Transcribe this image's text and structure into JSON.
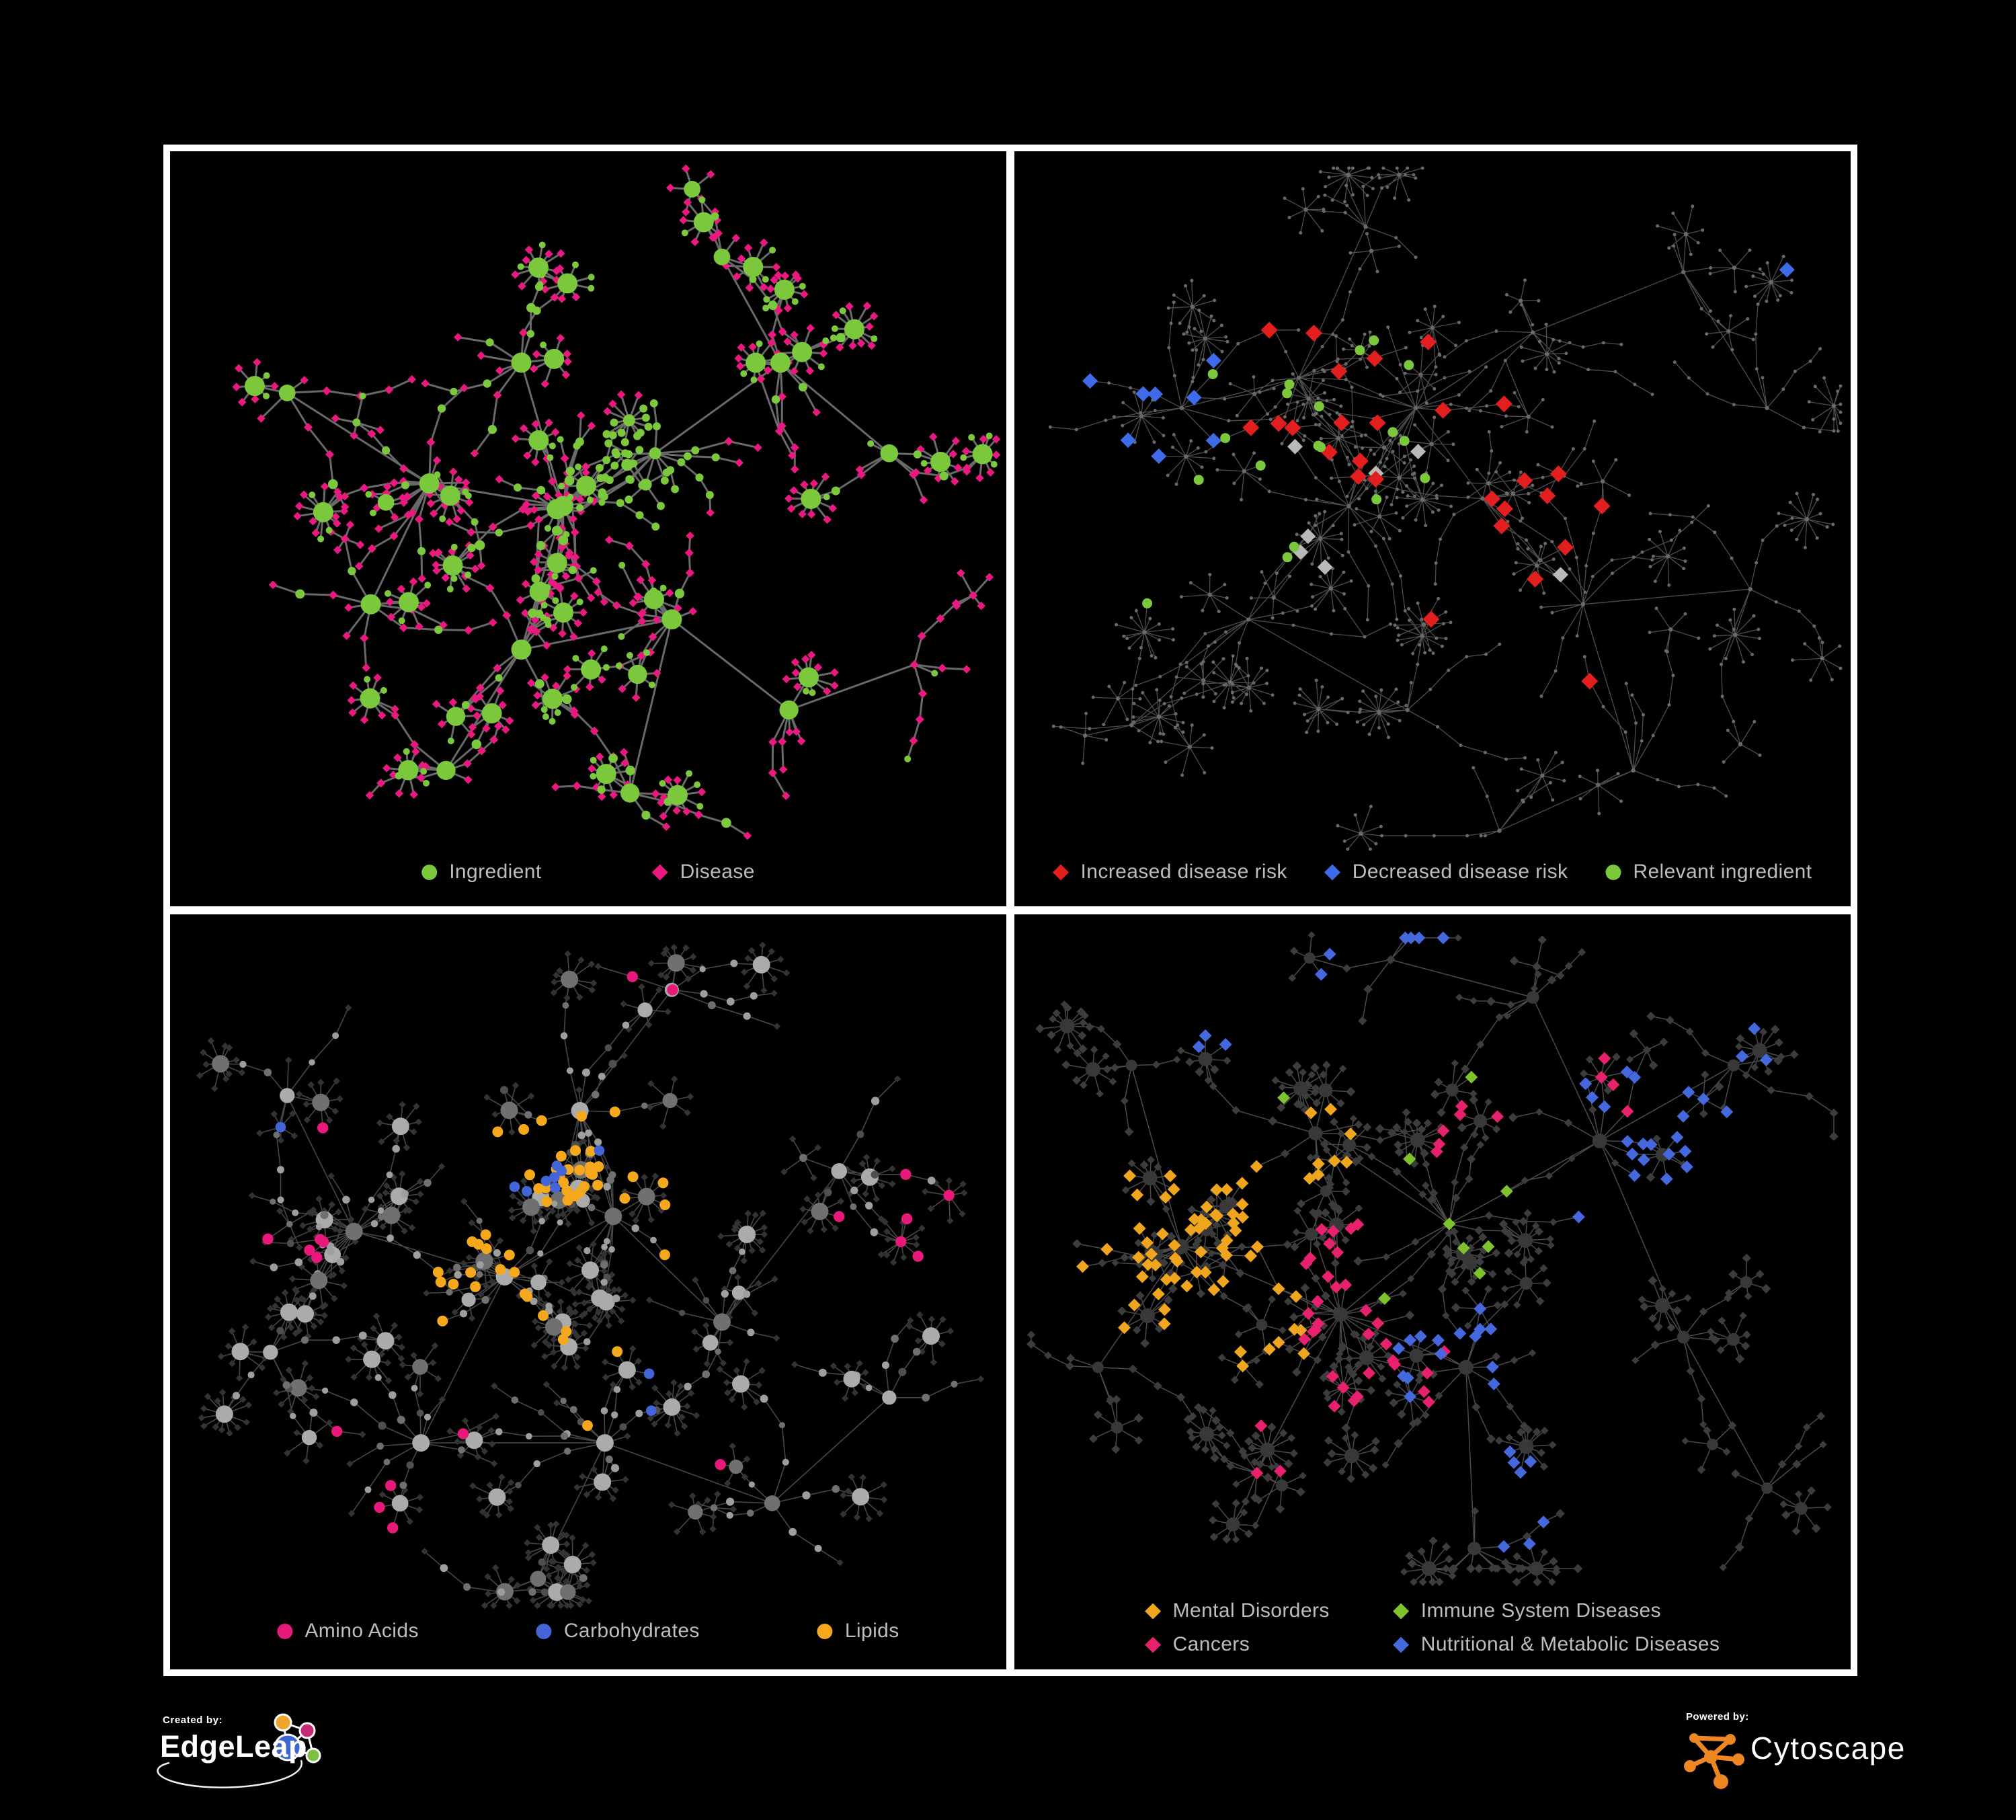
{
  "figure": {
    "background": "#000000",
    "panel_border_color": "#ffffff",
    "legend_text_color": "#BDBDBD"
  },
  "panels": [
    {
      "id": "ingredient-disease",
      "legend": [
        {
          "label": "Ingredient",
          "shape": "circle",
          "color": "#7CC83C"
        },
        {
          "label": "Disease",
          "shape": "diamond",
          "color": "#E9197F"
        }
      ],
      "network": {
        "edge_color": "#6F6F6F",
        "node_total_approx": 640,
        "categories": [
          {
            "name": "Ingredient",
            "shape": "circle",
            "color": "#7CC83C",
            "share": 0.33
          },
          {
            "name": "Disease",
            "shape": "diamond",
            "color": "#E9197F",
            "share": 0.67
          }
        ]
      }
    },
    {
      "id": "disease-risk",
      "legend": [
        {
          "label": "Increased disease risk",
          "shape": "diamond",
          "color": "#E31E1E"
        },
        {
          "label": "Decreased disease risk",
          "shape": "diamond",
          "color": "#3F6BE8"
        },
        {
          "label": "Relevant ingredient",
          "shape": "circle",
          "color": "#7CC83C"
        }
      ],
      "network": {
        "edge_color": "#575757",
        "base_node_color": "#696969",
        "node_total_approx": 660,
        "highlights": [
          {
            "name": "Increased disease risk",
            "shape": "diamond",
            "color": "#E31E1E",
            "count": 27
          },
          {
            "name": "Decreased disease risk",
            "shape": "diamond",
            "color": "#3F6BE8",
            "count": 9
          },
          {
            "name": "Unlabeled disease",
            "shape": "diamond",
            "color": "#B9B9B9",
            "count": 7
          },
          {
            "name": "Relevant ingredient",
            "shape": "circle",
            "color": "#7CC83C",
            "count": 19
          }
        ]
      }
    },
    {
      "id": "nutrient-classes",
      "legend": [
        {
          "label": "Amino Acids",
          "shape": "circle",
          "color": "#E9197C"
        },
        {
          "label": "Carbohydrates",
          "shape": "circle",
          "color": "#4465D8"
        },
        {
          "label": "Lipids",
          "shape": "circle",
          "color": "#F5A81C"
        }
      ],
      "network": {
        "edge_color": "#545454",
        "base_leaf_color": "#333333",
        "base_node_colors": [
          "#9E9E9E",
          "#707070",
          "#4F4F4F",
          "#ABABAB"
        ],
        "node_total_approx": 650,
        "highlights": [
          {
            "name": "Amino Acids",
            "shape": "circle",
            "color": "#E9197C",
            "count": 20
          },
          {
            "name": "Carbohydrates",
            "shape": "circle",
            "color": "#4465D8",
            "count": 11
          },
          {
            "name": "Lipids",
            "shape": "circle",
            "color": "#F5A81C",
            "count": 52
          }
        ]
      }
    },
    {
      "id": "disease-classes",
      "legend": [
        {
          "label": "Mental Disorders",
          "shape": "diamond",
          "color": "#F0A51F"
        },
        {
          "label": "Immune System Diseases",
          "shape": "diamond",
          "color": "#7CC32C"
        },
        {
          "label": "Cancers",
          "shape": "diamond",
          "color": "#E8216E"
        },
        {
          "label": "Nutritional & Metabolic Diseases",
          "shape": "diamond",
          "color": "#4568DE"
        }
      ],
      "network": {
        "edge_color": "#585858",
        "base_node_color": "#3C3C3C",
        "node_total_approx": 700,
        "highlights": [
          {
            "name": "Mental Disorders",
            "shape": "diamond",
            "color": "#F0A51F",
            "count": 70
          },
          {
            "name": "Cancers",
            "shape": "diamond",
            "color": "#E8216E",
            "count": 46
          },
          {
            "name": "Immune System Diseases",
            "shape": "diamond",
            "color": "#7CC32C",
            "count": 9
          },
          {
            "name": "Nutritional & Metabolic Diseases",
            "shape": "diamond",
            "color": "#4568DE",
            "count": 56
          }
        ]
      }
    }
  ],
  "footer": {
    "created_by_label": "Created by:",
    "created_by_name": "EdgeLeap",
    "powered_by_label": "Powered by:",
    "powered_by_name": "Cytoscape",
    "cytoscape_color": "#EE8622",
    "edgeleap_logo_colors": {
      "orange": "#EFA52F",
      "magenta": "#C52A72",
      "blue": "#3E66CE",
      "green": "#7CC142",
      "lines": "#FFFFFF"
    }
  }
}
